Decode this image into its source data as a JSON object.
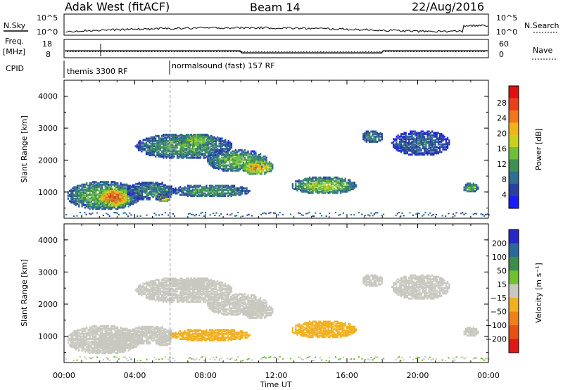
{
  "header": {
    "site": "Adak West (fitACF)",
    "beam": "Beam 14",
    "date": "22/Aug/2016"
  },
  "nsky_panel": {
    "left_label": "N.Sky",
    "right_label": "N.Search",
    "axis_ticks": [
      "10^5",
      "10^0"
    ]
  },
  "freq_panel": {
    "left_label_line1": "Freq.",
    "left_label_line2": "[MHz]",
    "left_ticks": [
      "18",
      "8"
    ],
    "right_ticks": [
      "60",
      "0"
    ],
    "right_label": "Nave"
  },
  "cpid_panel": {
    "label": "CPID",
    "segments": [
      {
        "text": "themis 3300 RF",
        "start_hour": 0
      },
      {
        "text": "normalsound (fast) 157 RF",
        "start_hour": 6
      }
    ]
  },
  "power_panel": {
    "ylabel": "Slant Range [km]",
    "yticks": [
      "4000",
      "3000",
      "2000",
      "1000"
    ],
    "colorbar_label": "Power [dB]",
    "colorbar_ticks": [
      "28",
      "24",
      "20",
      "16",
      "12",
      "8",
      "4"
    ],
    "colors": [
      "#1a1aff",
      "#2a3f9e",
      "#2e6e8e",
      "#3f8f55",
      "#6fbf3f",
      "#c8d21e",
      "#f0b31a",
      "#f0781a",
      "#e8401a",
      "#e01010"
    ]
  },
  "velocity_panel": {
    "ylabel": "Slant Range [km]",
    "yticks": [
      "4000",
      "3000",
      "2000",
      "1000"
    ],
    "colorbar_label": "Velocity [m s⁻¹]",
    "colorbar_ticks": [
      "200",
      "100",
      "50",
      "15",
      "−15",
      "−50",
      "−100",
      "−200"
    ],
    "colors": [
      "#2828c8",
      "#2a6a9a",
      "#3c8c4c",
      "#70c030",
      "#c8c8c0",
      "#f0b020",
      "#f08018",
      "#e85018",
      "#e01818"
    ]
  },
  "xaxis": {
    "ticks": [
      "00:00",
      "04:00",
      "08:00",
      "12:00",
      "16:00",
      "20:00",
      "00:00"
    ],
    "label": "Time UT"
  },
  "chart_data": {
    "type": "heatmap",
    "x_range_hours": [
      0,
      24
    ],
    "y_range_km": [
      180,
      4500
    ],
    "power_scale_db": [
      0,
      32
    ],
    "velocity_scale_ms": [
      -250,
      250
    ],
    "echo_regions": [
      {
        "t0": 0.1,
        "t1": 4.3,
        "r0": 400,
        "r1": 1300,
        "power": 14,
        "vel": 0
      },
      {
        "t0": 1.8,
        "t1": 3.8,
        "r0": 500,
        "r1": 1100,
        "power": 26,
        "vel": 0
      },
      {
        "t0": 5.2,
        "t1": 6.0,
        "r0": 650,
        "r1": 1050,
        "power": 24,
        "vel": 0
      },
      {
        "t0": 3.5,
        "t1": 6.2,
        "r0": 700,
        "r1": 1300,
        "power": 10,
        "vel": -5
      },
      {
        "t0": 4.0,
        "t1": 9.5,
        "r0": 2000,
        "r1": 2800,
        "power": 12,
        "vel": 0
      },
      {
        "t0": 6.5,
        "t1": 8.5,
        "r0": 2400,
        "r1": 2800,
        "power": 16,
        "vel": 0
      },
      {
        "t0": 8.0,
        "t1": 11.5,
        "r0": 1600,
        "r1": 2300,
        "power": 14,
        "vel": 5
      },
      {
        "t0": 10.0,
        "t1": 11.8,
        "r0": 1500,
        "r1": 2000,
        "power": 22,
        "vel": 0
      },
      {
        "t0": 6.0,
        "t1": 10.5,
        "r0": 800,
        "r1": 1200,
        "power": 12,
        "vel": -30
      },
      {
        "t0": 12.8,
        "t1": 16.5,
        "r0": 900,
        "r1": 1450,
        "power": 16,
        "vel": -40
      },
      {
        "t0": 16.8,
        "t1": 18.0,
        "r0": 2500,
        "r1": 2900,
        "power": 10,
        "vel": 0
      },
      {
        "t0": 18.5,
        "t1": 21.8,
        "r0": 2100,
        "r1": 2900,
        "power": 8,
        "vel": 5
      },
      {
        "t0": 22.5,
        "t1": 23.4,
        "r0": 950,
        "r1": 1250,
        "power": 14,
        "vel": 0
      }
    ],
    "frequency_mhz": {
      "t_step_hours": [
        0,
        10,
        18,
        24
      ],
      "values": [
        10.5,
        9.2,
        10.5
      ]
    },
    "nave": {
      "value": 20
    },
    "cpid_change_hour": 6
  }
}
